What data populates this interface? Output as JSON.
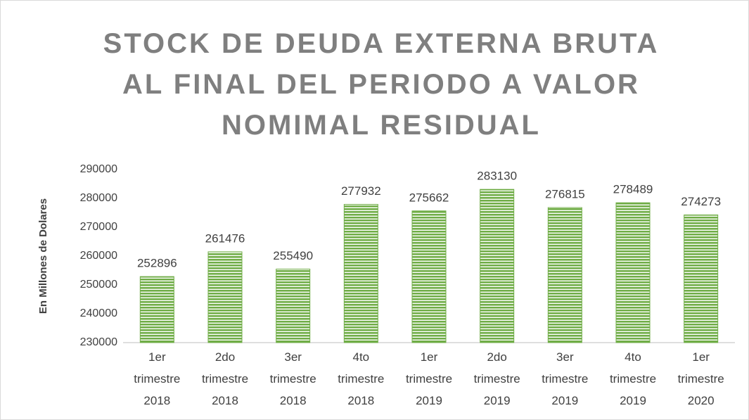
{
  "chart_data": {
    "type": "bar",
    "title": "STOCK DE DEUDA EXTERNA BRUTA AL FINAL DEL PERIODO A VALOR NOMIMAL RESIDUAL",
    "y_label": "En Millones de Dolares",
    "categories": [
      "1er trimestre 2018",
      "2do trimestre 2018",
      "3er trimestre 2018",
      "4to trimestre 2018",
      "1er trimestre 2019",
      "2do trimestre 2019",
      "3er trimestre 2019",
      "4to trimestre 2019",
      "1er trimestre 2020"
    ],
    "values": [
      252896,
      261476,
      255490,
      277932,
      275662,
      283130,
      276815,
      278489,
      274273
    ],
    "color": "#70ad47",
    "ylim": [
      230000,
      290000
    ],
    "yticks": [
      230000,
      240000,
      250000,
      260000,
      270000,
      280000,
      290000
    ],
    "grid": false
  }
}
